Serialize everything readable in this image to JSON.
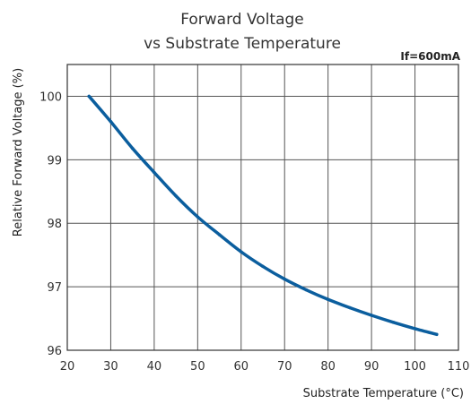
{
  "chart_data": {
    "type": "line",
    "title_line1": "Forward Voltage",
    "title_line2": "vs Substrate Temperature",
    "condition": "If=600mA",
    "xlabel": "Substrate Temperature (°C)",
    "ylabel": "Relative Forward  Voltage (%)",
    "xlim": [
      20,
      110
    ],
    "ylim": [
      96,
      100.5
    ],
    "xticks": [
      20,
      30,
      40,
      50,
      60,
      70,
      80,
      90,
      100,
      110
    ],
    "yticks": [
      96,
      97,
      98,
      99,
      100
    ],
    "grid": true,
    "series": [
      {
        "color": "#0b5e9e",
        "x": [
          25,
          30,
          35,
          40,
          45,
          50,
          55,
          60,
          65,
          70,
          75,
          80,
          85,
          90,
          95,
          100,
          105
        ],
        "y": [
          100.0,
          99.6,
          99.18,
          98.8,
          98.43,
          98.1,
          97.82,
          97.55,
          97.32,
          97.12,
          96.95,
          96.8,
          96.67,
          96.55,
          96.44,
          96.34,
          96.25
        ]
      }
    ]
  }
}
